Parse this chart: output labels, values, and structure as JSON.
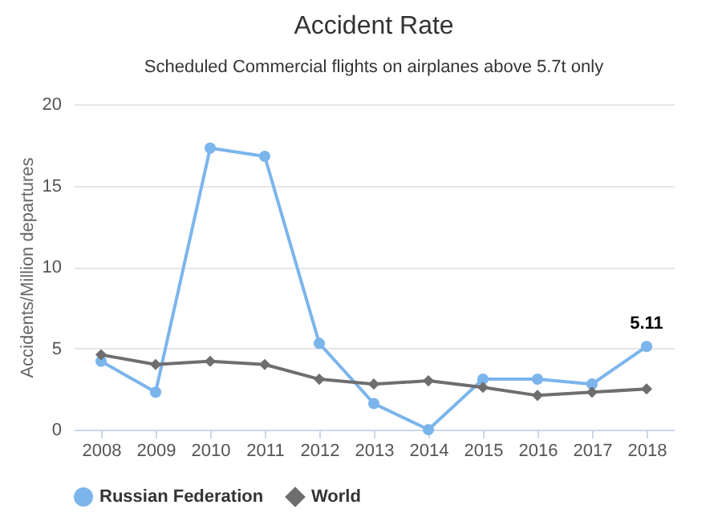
{
  "chart_data": {
    "type": "line",
    "title": "Accident Rate",
    "subtitle": "Scheduled Commercial flights on airplanes above 5.7t only",
    "ylabel": "Accidents/Million departures",
    "categories": [
      "2008",
      "2009",
      "2010",
      "2011",
      "2012",
      "2013",
      "2014",
      "2015",
      "2016",
      "2017",
      "2018"
    ],
    "series": [
      {
        "name": "Russian Federation",
        "color": "#7cb5ec",
        "marker": "circle",
        "values": [
          4.2,
          2.3,
          17.3,
          16.8,
          5.3,
          1.6,
          0,
          3.1,
          3.1,
          2.8,
          5.11
        ],
        "value_labels": [
          null,
          null,
          null,
          null,
          null,
          null,
          null,
          null,
          null,
          null,
          "5.11"
        ]
      },
      {
        "name": "World",
        "color": "#6e6e6e",
        "marker": "diamond",
        "values": [
          4.6,
          4.0,
          4.2,
          4.0,
          3.1,
          2.8,
          3.0,
          2.6,
          2.1,
          2.3,
          2.5
        ]
      }
    ],
    "ylim": [
      0,
      20
    ],
    "yticks": [
      0,
      5,
      10,
      15,
      20
    ],
    "grid": "y",
    "legend": "bottom"
  }
}
